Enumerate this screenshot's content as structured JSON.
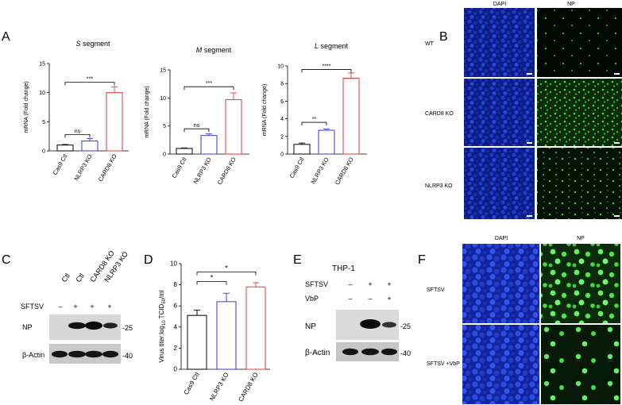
{
  "panels": {
    "A": "A",
    "B": "B",
    "C": "C",
    "D": "D",
    "E": "E",
    "F": "F"
  },
  "panelA": {
    "ylabel": "mRNA (Fold change)",
    "categories": [
      "Cas9 Ctl",
      "NLRP3 KO",
      "CARD8 KO"
    ],
    "colors": [
      "#000000",
      "#3a3ad6",
      "#e8383a"
    ],
    "charts": [
      {
        "title": "S segment",
        "title_italic": "S",
        "title_rest": " segment",
        "ylim": [
          0,
          15
        ],
        "ticks": [
          0,
          5,
          10,
          15
        ],
        "values": [
          1.0,
          1.7,
          10.0
        ],
        "errors": [
          0.1,
          0.4,
          1.0
        ],
        "sig": [
          {
            "from": 0,
            "to": 1,
            "label": "ns"
          },
          {
            "from": 0,
            "to": 2,
            "label": "***"
          }
        ]
      },
      {
        "title": "M segment",
        "title_italic": "M",
        "title_rest": " segment",
        "ylim": [
          0,
          15
        ],
        "ticks": [
          0,
          5,
          10,
          15
        ],
        "values": [
          1.0,
          3.3,
          9.7
        ],
        "errors": [
          0.1,
          0.3,
          1.2
        ],
        "sig": [
          {
            "from": 0,
            "to": 1,
            "label": "ns"
          },
          {
            "from": 0,
            "to": 2,
            "label": "***"
          }
        ]
      },
      {
        "title": "L segment",
        "title_italic": "L",
        "title_rest": " segment",
        "ylim": [
          0,
          10
        ],
        "ticks": [
          0,
          2,
          4,
          6,
          8,
          10
        ],
        "values": [
          1.1,
          2.7,
          8.6
        ],
        "errors": [
          0.15,
          0.15,
          0.6
        ],
        "sig": [
          {
            "from": 0,
            "to": 1,
            "label": "**"
          },
          {
            "from": 0,
            "to": 2,
            "label": "****"
          }
        ]
      }
    ]
  },
  "panelB": {
    "col_labels": [
      "DAPI",
      "NP"
    ],
    "row_labels": [
      "WT",
      "CARD8 KO",
      "NLRP3 KO"
    ]
  },
  "panelC": {
    "lanes": [
      "Ctl",
      "Ctl",
      "CARD8 KO",
      "NLRP3 KO"
    ],
    "treatment_label": "SFTSV",
    "treatment_signs": [
      "–",
      "+",
      "+",
      "+"
    ],
    "blot_labels": [
      "NP",
      "β-Actin"
    ],
    "markers": [
      "-25",
      "-40"
    ]
  },
  "panelD": {
    "chart_data": {
      "type": "bar",
      "categories": [
        "Cas9 Ctl",
        "NLRP3 KO",
        "CARD8 KO"
      ],
      "values": [
        5.1,
        6.4,
        7.8
      ],
      "errors": [
        0.5,
        0.8,
        0.4
      ],
      "ylabel": "Virus titer:log10 TCID50/ml",
      "ylim": [
        0,
        10
      ],
      "ticks": [
        0,
        2,
        4,
        6,
        8,
        10
      ],
      "sig": [
        {
          "from": 0,
          "to": 1,
          "label": "*"
        },
        {
          "from": 0,
          "to": 2,
          "label": "*"
        }
      ]
    },
    "ylabel_parts": [
      "Virus titer:log",
      "10",
      " TCID",
      "50",
      "/ml"
    ]
  },
  "panelE": {
    "title": "THP-1",
    "rows": [
      {
        "label": "SFTSV",
        "signs": [
          "–",
          "+",
          "+"
        ]
      },
      {
        "label": "VbP",
        "signs": [
          "–",
          "–",
          "+"
        ]
      }
    ],
    "blot_labels": [
      "NP",
      "β-Actin"
    ],
    "markers": [
      "-25",
      "-40"
    ]
  },
  "panelF": {
    "col_labels": [
      "DAPI",
      "NP"
    ],
    "row_labels": [
      "SFTSV",
      "SFTSV +VbP"
    ]
  }
}
